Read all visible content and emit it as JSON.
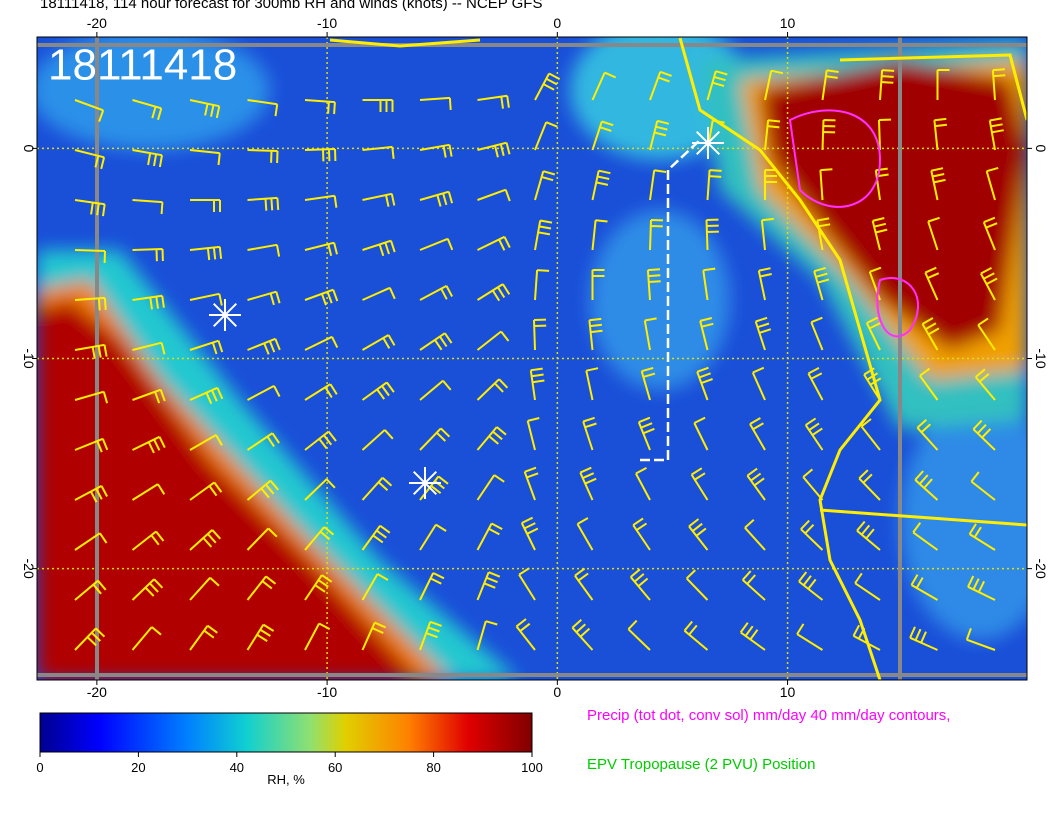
{
  "header": {
    "title": "18111418, 114 hour forecast for 300mb RH and winds (knots) -- NCEP GFS"
  },
  "map": {
    "stamp": "18111418",
    "xlim": [
      -22.6,
      20.4
    ],
    "ylim": [
      -25.3,
      5.3
    ],
    "xticks": [
      -20,
      -10,
      0,
      10
    ],
    "yticks": [
      0,
      -10,
      -20
    ]
  },
  "colorbar": {
    "lim": [
      0,
      100
    ],
    "ticks": [
      0,
      20,
      40,
      60,
      80,
      100
    ],
    "label": "RH, %"
  },
  "legend": {
    "precip": "Precip (tot dot, conv sol) mm/day 40 mm/day contours,",
    "epv": "EPV Tropopause (2 PVU) Position"
  }
}
